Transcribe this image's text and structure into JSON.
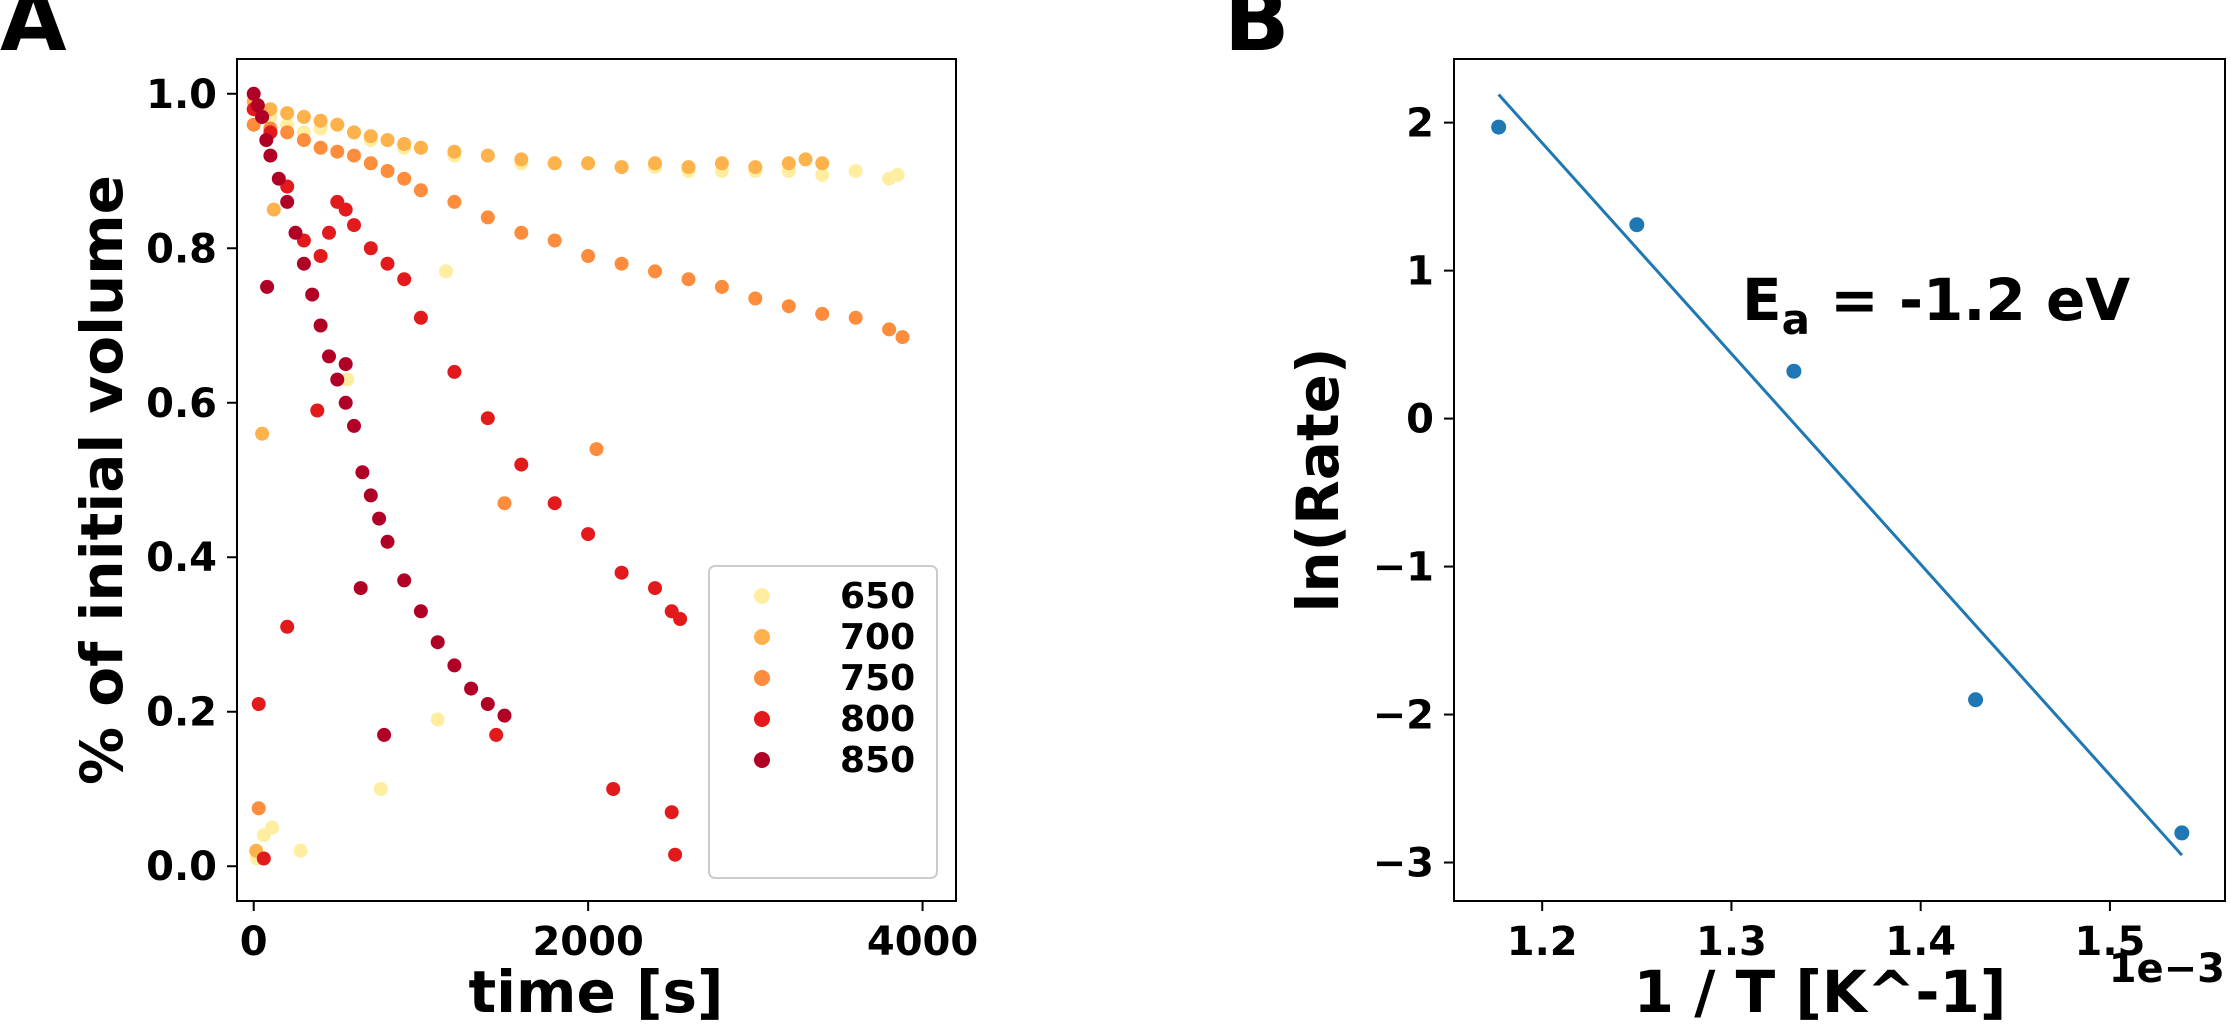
{
  "panels": {
    "a_label": "A",
    "b_label": "B"
  },
  "chart_data": [
    {
      "type": "scatter",
      "panel": "A",
      "title": "",
      "xlabel": "time [s]",
      "ylabel": "% of initial volume",
      "xlim": [
        -100,
        4200
      ],
      "ylim": [
        -0.045,
        1.045
      ],
      "xticks": [
        0,
        2000,
        4000
      ],
      "xtick_labels": [
        "0",
        "2000",
        "4000"
      ],
      "yticks": [
        0.0,
        0.2,
        0.4,
        0.6,
        0.8,
        1.0
      ],
      "ytick_labels": [
        "0.0",
        "0.2",
        "0.4",
        "0.6",
        "0.8",
        "1.0"
      ],
      "grid": false,
      "legend_position": "lower right",
      "series": [
        {
          "name": "650",
          "color": "#ffeda0",
          "x": [
            0,
            100,
            200,
            300,
            400,
            500,
            600,
            700,
            800,
            900,
            1000,
            1200,
            1400,
            1600,
            1800,
            2000,
            2200,
            2400,
            2600,
            2800,
            3000,
            3200,
            3400,
            3600,
            3800,
            3850,
            20,
            60,
            110,
            280,
            560,
            760,
            1100,
            1150
          ],
          "y": [
            0.98,
            0.97,
            0.96,
            0.95,
            0.955,
            0.96,
            0.95,
            0.94,
            0.94,
            0.93,
            0.93,
            0.92,
            0.92,
            0.91,
            0.91,
            0.91,
            0.905,
            0.905,
            0.9,
            0.9,
            0.9,
            0.9,
            0.895,
            0.9,
            0.89,
            0.895,
            0.01,
            0.04,
            0.05,
            0.02,
            0.63,
            0.1,
            0.19,
            0.77
          ]
        },
        {
          "name": "700",
          "color": "#feb24c",
          "x": [
            0,
            100,
            200,
            300,
            400,
            500,
            600,
            700,
            800,
            900,
            1000,
            1200,
            1400,
            1600,
            1800,
            2000,
            2200,
            2400,
            2600,
            2800,
            3000,
            3200,
            3300,
            3400,
            15,
            50,
            120
          ],
          "y": [
            0.99,
            0.98,
            0.975,
            0.97,
            0.965,
            0.96,
            0.95,
            0.945,
            0.94,
            0.935,
            0.93,
            0.925,
            0.92,
            0.915,
            0.91,
            0.91,
            0.905,
            0.91,
            0.905,
            0.91,
            0.905,
            0.91,
            0.915,
            0.91,
            0.02,
            0.56,
            0.85
          ]
        },
        {
          "name": "750",
          "color": "#fd8d3c",
          "x": [
            0,
            100,
            200,
            300,
            400,
            500,
            600,
            700,
            800,
            900,
            1000,
            1200,
            1400,
            1600,
            1800,
            2000,
            2200,
            2400,
            2600,
            2800,
            3000,
            3200,
            3400,
            3600,
            3800,
            3880,
            30,
            1500,
            2050
          ],
          "y": [
            0.96,
            0.955,
            0.95,
            0.94,
            0.93,
            0.925,
            0.92,
            0.91,
            0.9,
            0.89,
            0.875,
            0.86,
            0.84,
            0.82,
            0.81,
            0.79,
            0.78,
            0.77,
            0.76,
            0.75,
            0.735,
            0.725,
            0.715,
            0.71,
            0.695,
            0.685,
            0.075,
            0.47,
            0.54
          ]
        },
        {
          "name": "800",
          "color": "#e31a1c",
          "x": [
            0,
            50,
            100,
            200,
            300,
            400,
            450,
            500,
            550,
            600,
            700,
            800,
            900,
            1000,
            1200,
            1400,
            1600,
            1800,
            2000,
            2200,
            2400,
            2500,
            2550,
            30,
            60,
            200,
            380,
            1450,
            2150,
            2500,
            2520
          ],
          "y": [
            0.98,
            0.97,
            0.95,
            0.88,
            0.81,
            0.79,
            0.82,
            0.86,
            0.85,
            0.83,
            0.8,
            0.78,
            0.76,
            0.71,
            0.64,
            0.58,
            0.52,
            0.47,
            0.43,
            0.38,
            0.36,
            0.33,
            0.32,
            0.21,
            0.01,
            0.31,
            0.59,
            0.17,
            0.1,
            0.07,
            0.015
          ]
        },
        {
          "name": "850",
          "color": "#b10026",
          "x": [
            0,
            25,
            50,
            75,
            100,
            150,
            200,
            250,
            300,
            350,
            400,
            450,
            500,
            550,
            600,
            650,
            700,
            750,
            800,
            900,
            1000,
            1100,
            1200,
            1300,
            1400,
            1500,
            80,
            550,
            640,
            780
          ],
          "y": [
            1.0,
            0.985,
            0.97,
            0.94,
            0.92,
            0.89,
            0.86,
            0.82,
            0.78,
            0.74,
            0.7,
            0.66,
            0.63,
            0.6,
            0.57,
            0.51,
            0.48,
            0.45,
            0.42,
            0.37,
            0.33,
            0.29,
            0.26,
            0.23,
            0.21,
            0.195,
            0.75,
            0.65,
            0.36,
            0.17
          ]
        }
      ]
    },
    {
      "type": "scatter",
      "panel": "B",
      "title": "",
      "xlabel": "1 / T [K^-1]",
      "ylabel": "ln(Rate)",
      "x_offset_label": "1e−3",
      "xlim": [
        1.1534,
        1.5608
      ],
      "ylim": [
        -3.26,
        2.43
      ],
      "xticks": [
        1.2,
        1.3,
        1.4,
        1.5
      ],
      "xtick_labels": [
        "1.2",
        "1.3",
        "1.4",
        "1.5"
      ],
      "yticks": [
        -3,
        -2,
        -1,
        0,
        1,
        2
      ],
      "ytick_labels": [
        "−3",
        "−2",
        "−1",
        "0",
        "1",
        "2"
      ],
      "grid": false,
      "point_color": "#1f77b4",
      "line_color": "#1f77b4",
      "x": [
        1.177,
        1.25,
        1.333,
        1.429,
        1.538
      ],
      "y": [
        1.97,
        1.31,
        0.32,
        -1.9,
        -2.8
      ],
      "fit_line": {
        "x": [
          1.177,
          1.538
        ],
        "y": [
          2.19,
          -2.95
        ]
      },
      "annotation_main": "E",
      "annotation_sub": "a",
      "annotation_rest": " = -1.2 eV"
    }
  ]
}
